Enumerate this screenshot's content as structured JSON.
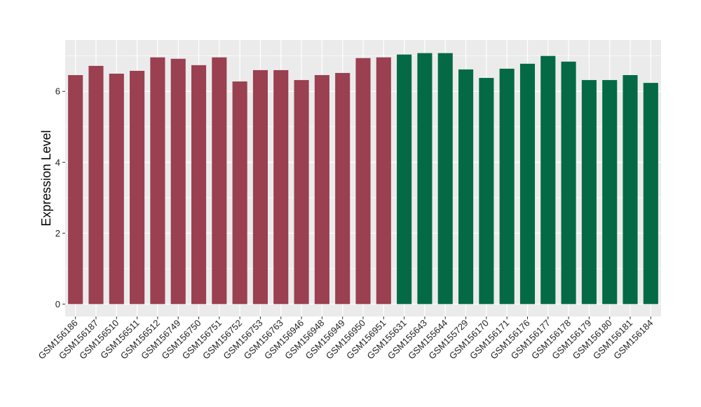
{
  "chart_data": {
    "type": "bar",
    "ylabel": "Expression Level",
    "xlabel": "",
    "ylim": [
      -0.35,
      7.45
    ],
    "yticks": [
      0,
      2,
      4,
      6
    ],
    "grid": true,
    "legend": "none",
    "panel_background": "#ebebeb",
    "grid_color": "#ffffff",
    "group_colors": [
      "#9a4050",
      "#046a45"
    ],
    "categories": [
      "GSM156186",
      "GSM156187",
      "GSM156510",
      "GSM156511",
      "GSM156512",
      "GSM156749",
      "GSM156750",
      "GSM156751",
      "GSM156752",
      "GSM156753",
      "GSM156763",
      "GSM156946",
      "GSM156948",
      "GSM156949",
      "GSM156950",
      "GSM156951",
      "GSM155631",
      "GSM155643",
      "GSM155644",
      "GSM155729",
      "GSM156170",
      "GSM156171",
      "GSM156176",
      "GSM156177",
      "GSM156178",
      "GSM156179",
      "GSM156180",
      "GSM156181",
      "GSM156184"
    ],
    "values": [
      6.46,
      6.72,
      6.5,
      6.58,
      6.96,
      6.92,
      6.74,
      6.96,
      6.28,
      6.6,
      6.6,
      6.32,
      6.46,
      6.52,
      6.94,
      6.96,
      7.04,
      7.08,
      7.08,
      6.62,
      6.38,
      6.64,
      6.78,
      7.0,
      6.84,
      6.32,
      6.32,
      6.46,
      6.24
    ],
    "groups": [
      0,
      0,
      0,
      0,
      0,
      0,
      0,
      0,
      0,
      0,
      0,
      0,
      0,
      0,
      0,
      0,
      1,
      1,
      1,
      1,
      1,
      1,
      1,
      1,
      1,
      1,
      1,
      1,
      1
    ]
  }
}
